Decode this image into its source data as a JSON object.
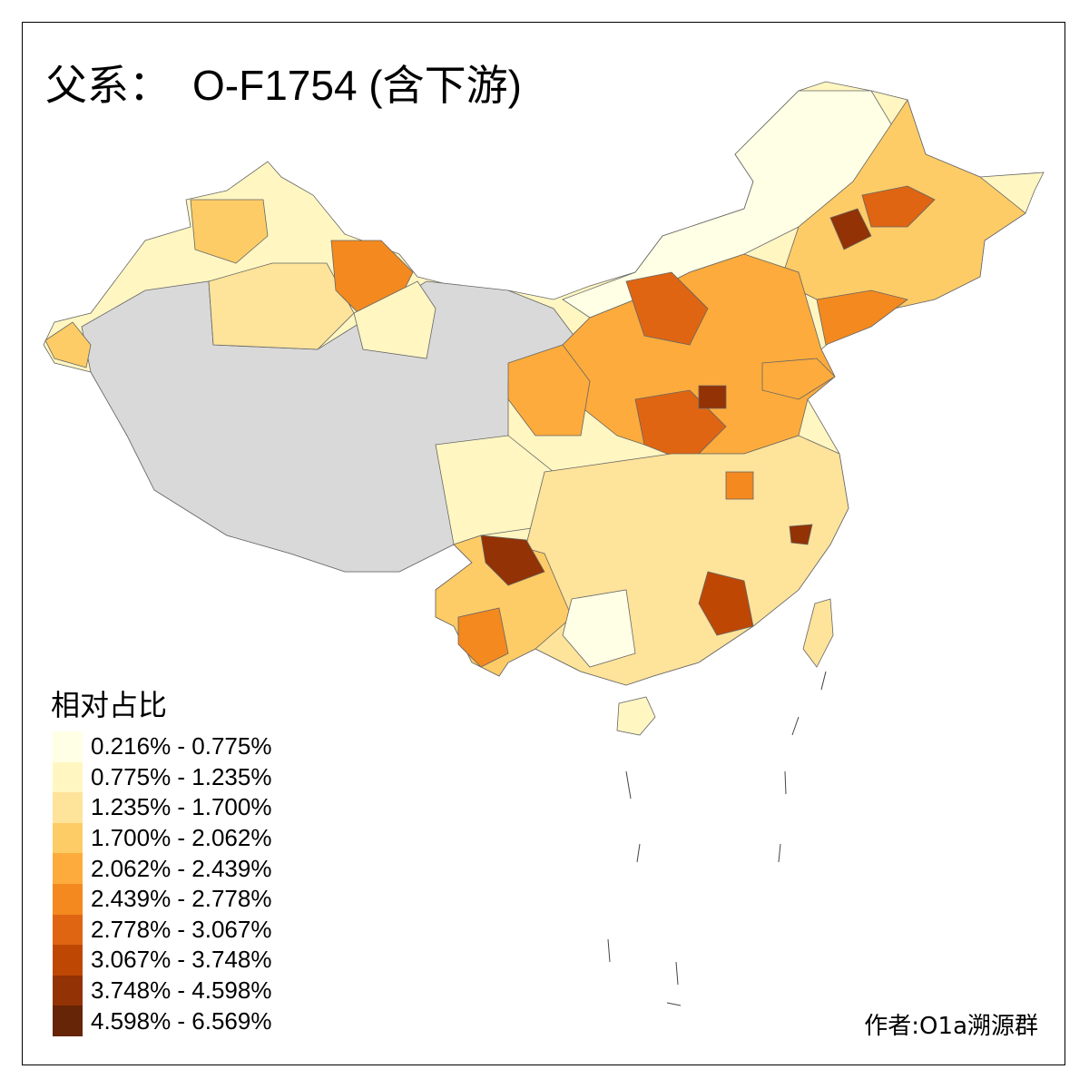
{
  "title": {
    "prefix": "父系：",
    "main": "O-F1754 (含下游)"
  },
  "legend": {
    "title": "相对占比",
    "classes": [
      {
        "label": "0.216% - 0.775%",
        "color": "#FFFFE5"
      },
      {
        "label": "0.775% - 1.235%",
        "color": "#FFF6C2"
      },
      {
        "label": "1.235% - 1.700%",
        "color": "#FEE39A"
      },
      {
        "label": "1.700% - 2.062%",
        "color": "#FECC66"
      },
      {
        "label": "2.062% - 2.439%",
        "color": "#FDAB3C"
      },
      {
        "label": "2.439% - 2.778%",
        "color": "#F3891F"
      },
      {
        "label": "2.778% - 3.067%",
        "color": "#DF6513"
      },
      {
        "label": "3.067% - 3.748%",
        "color": "#BF4704"
      },
      {
        "label": "3.748% - 4.598%",
        "color": "#923205"
      },
      {
        "label": "4.598% - 6.569%",
        "color": "#662506"
      }
    ],
    "no_data_color": "#D9D9D9"
  },
  "credit": "作者:O1a溯源群"
}
